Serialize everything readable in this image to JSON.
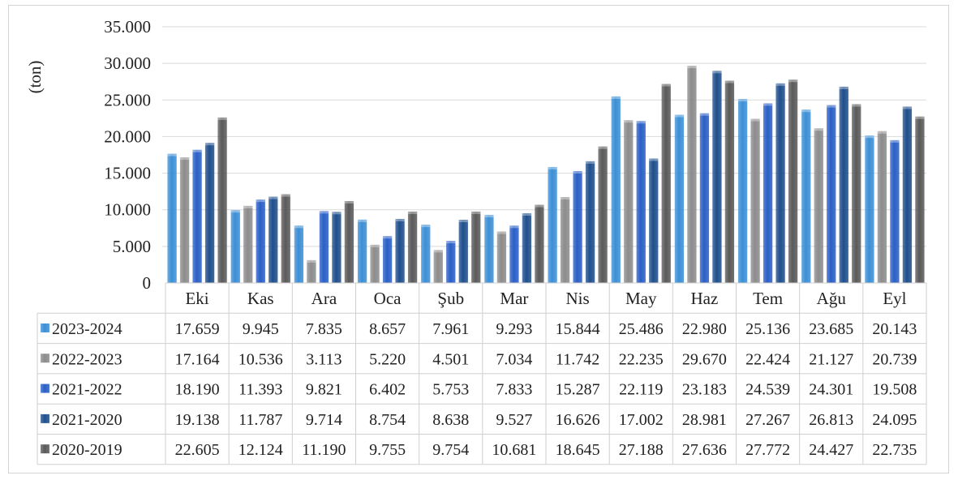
{
  "chart_data": {
    "type": "bar",
    "ylabel": "(ton)",
    "ylim": [
      0,
      35000
    ],
    "yticks": [
      "0",
      "5.000",
      "10.000",
      "15.000",
      "20.000",
      "25.000",
      "30.000",
      "35.000"
    ],
    "grid": true,
    "legend": "data table below chart",
    "categories": [
      "Eki",
      "Kas",
      "Ara",
      "Oca",
      "Şub",
      "Mar",
      "Nis",
      "May",
      "Haz",
      "Tem",
      "Ağu",
      "Eyl"
    ],
    "series": [
      {
        "name": "2023-2024",
        "color": "#3c8fd6",
        "values": [
          17659,
          9945,
          7835,
          8657,
          7961,
          9293,
          15844,
          25486,
          22980,
          25136,
          23685,
          20143
        ],
        "labels": [
          "17.659",
          "9.945",
          "7.835",
          "8.657",
          "7.961",
          "9.293",
          "15.844",
          "25.486",
          "22.980",
          "25.136",
          "23.685",
          "20.143"
        ]
      },
      {
        "name": "2022-2023",
        "color": "#8c8c8c",
        "values": [
          17164,
          10536,
          3113,
          5220,
          4501,
          7034,
          11742,
          22235,
          29670,
          22424,
          21127,
          20739
        ],
        "labels": [
          "17.164",
          "10.536",
          "3.113",
          "5.220",
          "4.501",
          "7.034",
          "11.742",
          "22.235",
          "29.670",
          "22.424",
          "21.127",
          "20.739"
        ]
      },
      {
        "name": "2021-2022",
        "color": "#2a5fc6",
        "values": [
          18190,
          11393,
          9821,
          6402,
          5753,
          7833,
          15287,
          22119,
          23183,
          24539,
          24301,
          19508
        ],
        "labels": [
          "18.190",
          "11.393",
          "9.821",
          "6.402",
          "5.753",
          "7.833",
          "15.287",
          "22.119",
          "23.183",
          "24.539",
          "24.301",
          "19.508"
        ]
      },
      {
        "name": "2021-2020",
        "color": "#1f4f8c",
        "values": [
          19138,
          11787,
          9714,
          8754,
          8638,
          9527,
          16626,
          17002,
          28981,
          27267,
          26813,
          24095
        ],
        "labels": [
          "19.138",
          "11.787",
          "9.714",
          "8.754",
          "8.638",
          "9.527",
          "16.626",
          "17.002",
          "28.981",
          "27.267",
          "26.813",
          "24.095"
        ]
      },
      {
        "name": "2020-2019",
        "color": "#5a5a5a",
        "values": [
          22605,
          12124,
          11190,
          9755,
          9754,
          10681,
          18645,
          27188,
          27636,
          27772,
          24427,
          22735
        ],
        "labels": [
          "22.605",
          "12.124",
          "11.190",
          "9.755",
          "9.754",
          "10.681",
          "18.645",
          "27.188",
          "27.636",
          "27.772",
          "24.427",
          "22.735"
        ]
      }
    ]
  }
}
